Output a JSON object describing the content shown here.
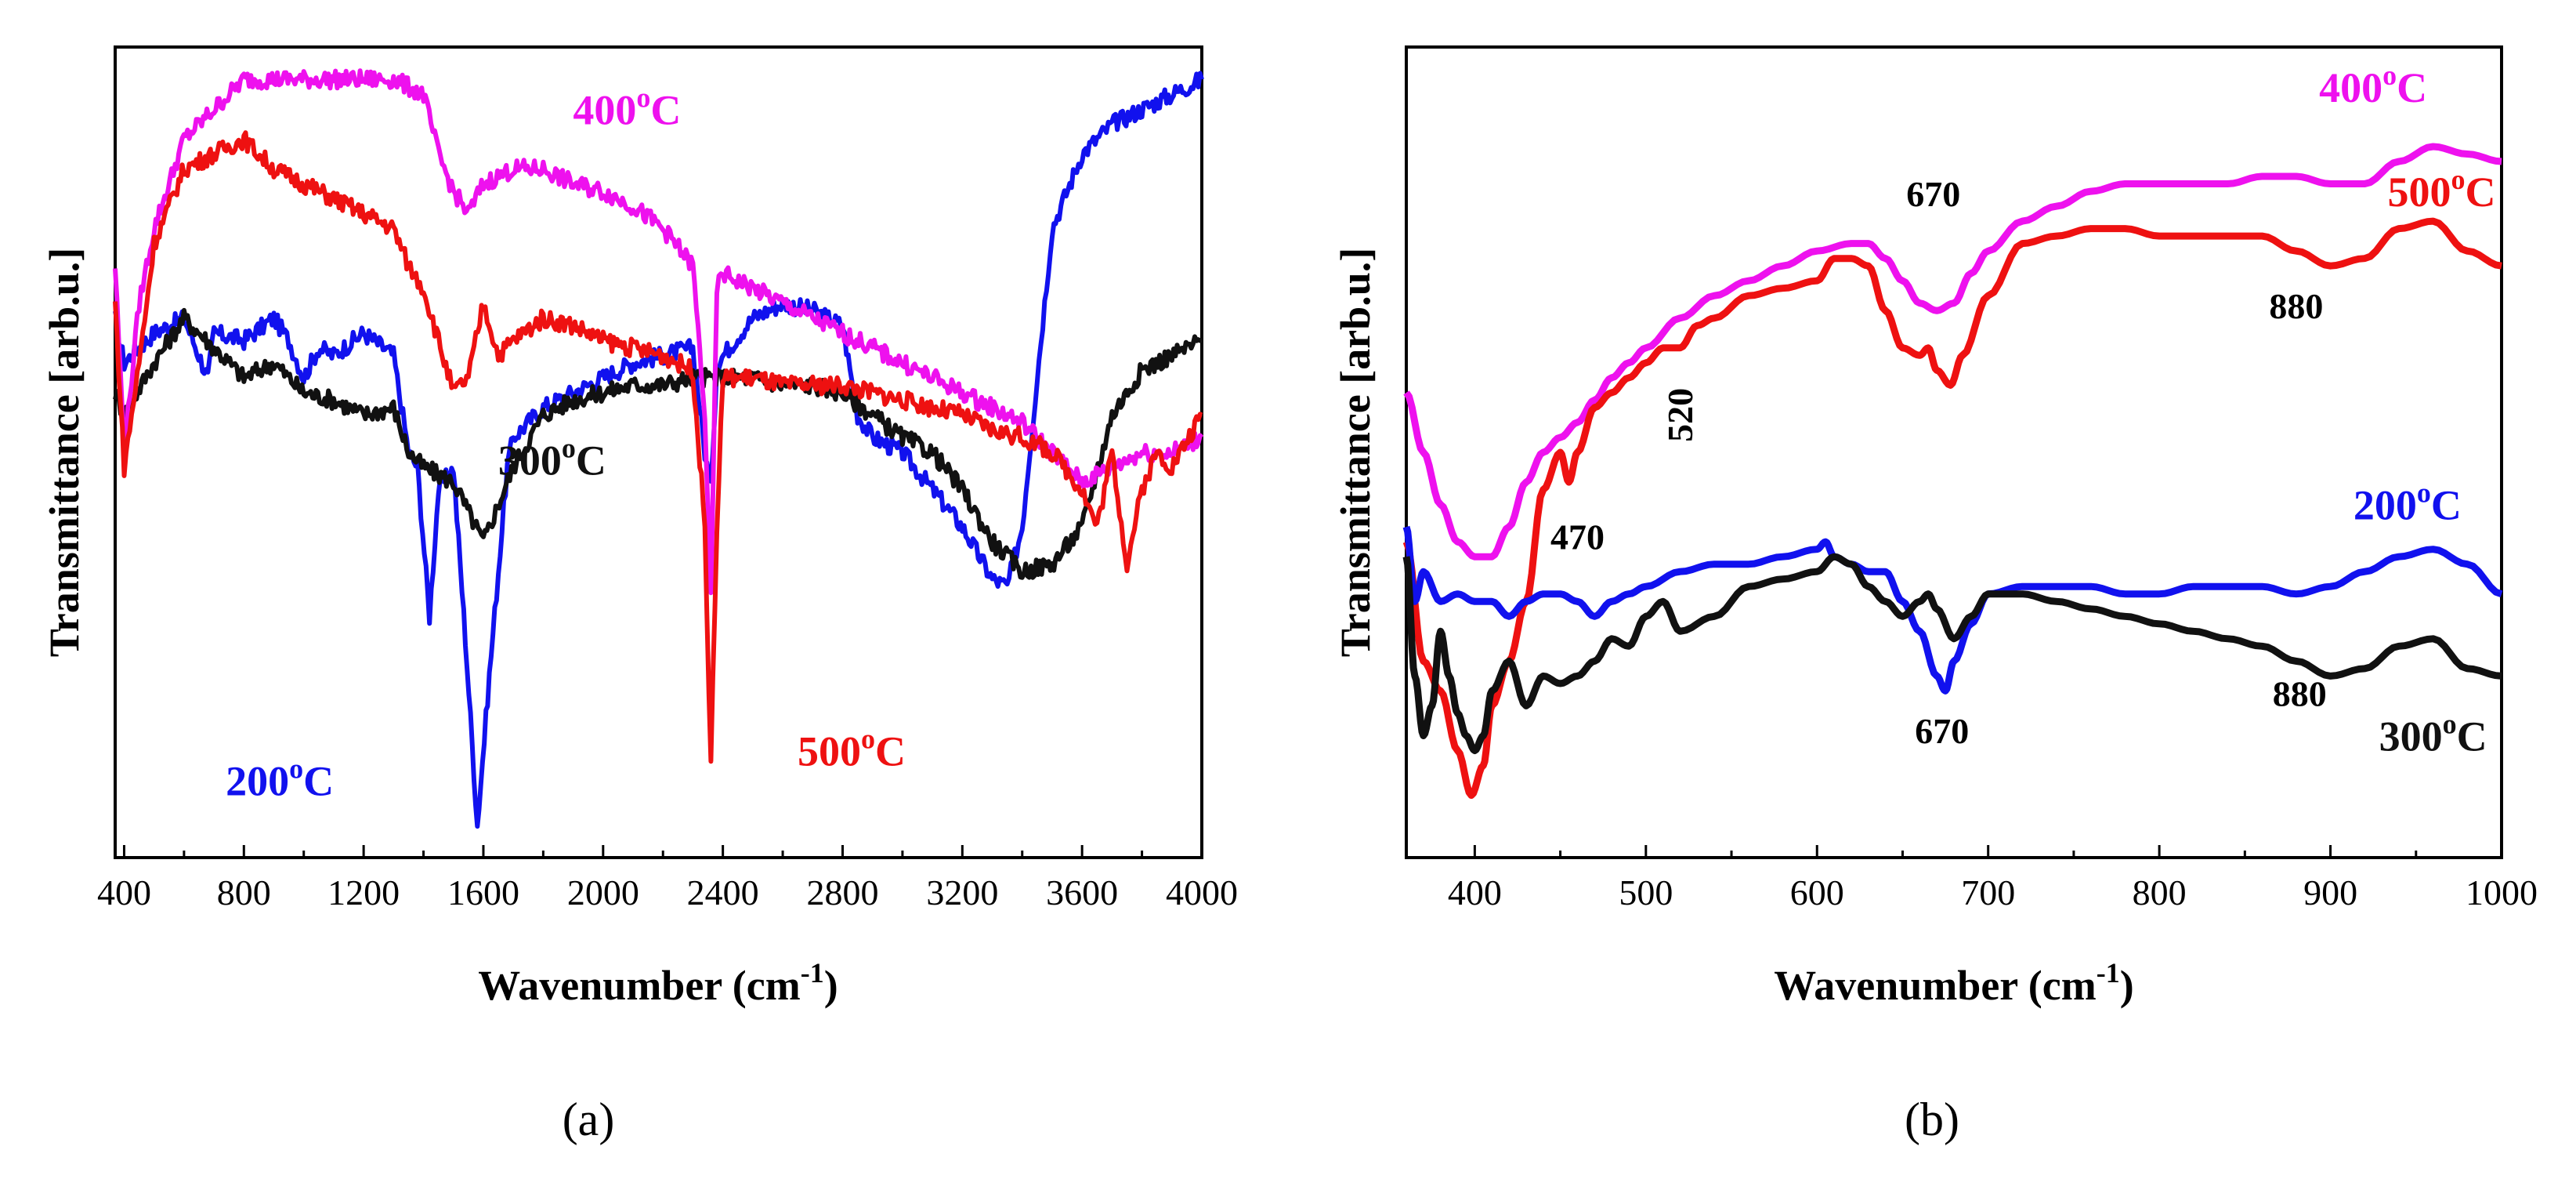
{
  "chart_data": [
    {
      "panel": "(a)",
      "type": "line",
      "title": "",
      "xlabel": "Wavenumber (cm",
      "xlabel_sup": "-1",
      "xlabel_suffix": ")",
      "ylabel": "Transmittance [arb.u.]",
      "xlim": [
        370,
        4000
      ],
      "ylim": [
        0,
        100
      ],
      "xticks": [
        400,
        800,
        1200,
        1600,
        2000,
        2400,
        2800,
        3200,
        3600,
        4000
      ],
      "series": [
        {
          "name": "200",
          "unit": "C",
          "color": "#1111ee",
          "x": [
            370,
            400,
            500,
            600,
            680,
            700,
            800,
            900,
            950,
            1000,
            1050,
            1100,
            1200,
            1300,
            1350,
            1380,
            1420,
            1450,
            1500,
            1540,
            1580,
            1620,
            1680,
            1700,
            1800,
            1900,
            2000,
            2100,
            2200,
            2300,
            2340,
            2360,
            2380,
            2420,
            2500,
            2600,
            2700,
            2800,
            2850,
            2900,
            3000,
            3100,
            3200,
            3300,
            3350,
            3400,
            3450,
            3500,
            3600,
            3650,
            3700,
            3800,
            3900,
            4000
          ],
          "y": [
            68,
            62,
            66,
            68,
            60,
            66,
            65,
            68,
            65,
            60,
            64,
            63,
            66,
            63,
            50,
            48,
            28,
            45,
            48,
            25,
            0,
            20,
            48,
            52,
            56,
            58,
            60,
            62,
            63,
            64,
            50,
            45,
            62,
            64,
            68,
            70,
            69,
            67,
            55,
            52,
            50,
            45,
            40,
            33,
            32,
            40,
            60,
            80,
            90,
            92,
            94,
            96,
            98,
            100
          ]
        },
        {
          "name": "300",
          "unit": "C",
          "color": "#111111",
          "x": [
            370,
            400,
            500,
            600,
            700,
            800,
            900,
            1000,
            1100,
            1200,
            1300,
            1350,
            1400,
            1500,
            1600,
            1700,
            1800,
            1900,
            2000,
            2100,
            2200,
            2300,
            2400,
            2500,
            2600,
            2700,
            2800,
            2900,
            3000,
            3100,
            3200,
            3300,
            3400,
            3500,
            3600,
            3700,
            3800,
            3900,
            4000
          ],
          "y": [
            58,
            55,
            62,
            68,
            64,
            60,
            62,
            58,
            57,
            55,
            56,
            50,
            48,
            46,
            38,
            48,
            55,
            57,
            58,
            59,
            59,
            60,
            60,
            60,
            59,
            59,
            58,
            55,
            52,
            50,
            45,
            38,
            34,
            35,
            40,
            55,
            61,
            63,
            65
          ]
        },
        {
          "name": "400",
          "unit": "C",
          "color": "#ee11ee",
          "x": [
            370,
            400,
            450,
            500,
            600,
            700,
            800,
            900,
            1000,
            1100,
            1200,
            1300,
            1400,
            1450,
            1500,
            1550,
            1600,
            1700,
            1800,
            1900,
            2000,
            2100,
            2200,
            2300,
            2340,
            2360,
            2380,
            2400,
            2500,
            2600,
            2700,
            2800,
            2900,
            3000,
            3100,
            3200,
            3300,
            3400,
            3500,
            3600,
            3700,
            3800,
            3900,
            4000
          ],
          "y": [
            75,
            50,
            70,
            80,
            92,
            96,
            100,
            100,
            100,
            100,
            100,
            100,
            98,
            90,
            85,
            82,
            86,
            88,
            88,
            86,
            85,
            83,
            80,
            75,
            55,
            30,
            72,
            74,
            72,
            70,
            68,
            66,
            64,
            62,
            60,
            58,
            56,
            54,
            50,
            46,
            48,
            50,
            50,
            52
          ]
        },
        {
          "name": "500",
          "unit": "C",
          "color": "#ee1111",
          "x": [
            370,
            400,
            450,
            500,
            600,
            700,
            800,
            900,
            1000,
            1100,
            1200,
            1300,
            1350,
            1400,
            1450,
            1500,
            1550,
            1600,
            1650,
            1700,
            1800,
            1900,
            2000,
            2100,
            2200,
            2300,
            2340,
            2360,
            2380,
            2400,
            2500,
            2600,
            2700,
            2800,
            2900,
            3000,
            3100,
            3200,
            3300,
            3400,
            3500,
            3600,
            3650,
            3700,
            3750,
            3800,
            3850,
            3900,
            4000
          ],
          "y": [
            70,
            48,
            62,
            78,
            88,
            90,
            92,
            88,
            86,
            84,
            82,
            80,
            75,
            72,
            65,
            58,
            60,
            70,
            63,
            65,
            68,
            67,
            65,
            64,
            63,
            61,
            40,
            8,
            40,
            60,
            60,
            59,
            59,
            59,
            58,
            57,
            56,
            55,
            53,
            52,
            50,
            45,
            40,
            50,
            35,
            45,
            50,
            48,
            55
          ]
        }
      ],
      "labels": [
        {
          "text": "400",
          "unit": "C",
          "color": "#ee11ee",
          "x": 2080,
          "y": 94
        },
        {
          "text": "300",
          "unit": "C",
          "color": "#111111",
          "x": 1830,
          "y": 47
        },
        {
          "text": "200",
          "unit": "C",
          "color": "#1111ee",
          "x": 920,
          "y": 4
        },
        {
          "text": "500",
          "unit": "C",
          "color": "#ee1111",
          "x": 2830,
          "y": 8
        }
      ]
    },
    {
      "panel": "(b)",
      "type": "line",
      "title": "",
      "xlabel": "Wavenumber (cm",
      "xlabel_sup": "-1",
      "xlabel_suffix": ")",
      "ylabel": "Transmittance [arb.u.]",
      "xlim": [
        360,
        1000
      ],
      "ylim": [
        0,
        100
      ],
      "xticks": [
        400,
        500,
        600,
        700,
        800,
        900,
        1000
      ],
      "series": [
        {
          "name": "400",
          "unit": "C",
          "color": "#ee11ee",
          "x": [
            360,
            370,
            380,
            390,
            400,
            410,
            420,
            430,
            440,
            450,
            460,
            470,
            480,
            490,
            500,
            520,
            540,
            560,
            580,
            600,
            620,
            630,
            640,
            650,
            660,
            670,
            680,
            690,
            700,
            720,
            740,
            760,
            780,
            800,
            820,
            840,
            860,
            880,
            900,
            920,
            940,
            960,
            980,
            1000
          ],
          "y": [
            58,
            50,
            43,
            38,
            36,
            36,
            40,
            46,
            50,
            52,
            54,
            57,
            60,
            62,
            64,
            68,
            71,
            73,
            75,
            77,
            78,
            78,
            76,
            73,
            70,
            69,
            70,
            74,
            77,
            81,
            83,
            85,
            86,
            86,
            86,
            86,
            87,
            87,
            86,
            86,
            89,
            91,
            90,
            89
          ]
        },
        {
          "name": "500",
          "unit": "C",
          "color": "#ee1111",
          "x": [
            360,
            370,
            380,
            390,
            398,
            405,
            410,
            420,
            430,
            440,
            450,
            455,
            460,
            470,
            480,
            490,
            500,
            510,
            520,
            530,
            540,
            560,
            580,
            600,
            610,
            620,
            630,
            640,
            650,
            660,
            665,
            670,
            678,
            685,
            700,
            720,
            740,
            760,
            780,
            800,
            820,
            840,
            860,
            880,
            900,
            920,
            940,
            960,
            980,
            1000
          ],
          "y": [
            38,
            22,
            18,
            10,
            4,
            8,
            16,
            22,
            30,
            45,
            50,
            46,
            50,
            56,
            58,
            60,
            62,
            64,
            64,
            67,
            68,
            71,
            72,
            73,
            76,
            76,
            75,
            69,
            64,
            63,
            64,
            61,
            59,
            63,
            71,
            78,
            79,
            80,
            80,
            79,
            79,
            79,
            79,
            77,
            75,
            76,
            80,
            81,
            77,
            75
          ]
        },
        {
          "name": "200",
          "unit": "C",
          "color": "#1111ee",
          "x": [
            360,
            365,
            370,
            380,
            390,
            400,
            410,
            420,
            430,
            440,
            450,
            460,
            470,
            480,
            490,
            500,
            520,
            540,
            560,
            580,
            600,
            605,
            610,
            620,
            630,
            640,
            650,
            660,
            670,
            675,
            680,
            690,
            700,
            720,
            740,
            760,
            780,
            800,
            820,
            840,
            860,
            880,
            900,
            920,
            940,
            960,
            980,
            1000
          ],
          "y": [
            40,
            30,
            34,
            30,
            31,
            30,
            30,
            28,
            30,
            31,
            31,
            30,
            28,
            30,
            31,
            32,
            34,
            35,
            35,
            36,
            37,
            38,
            36,
            35,
            34,
            34,
            30,
            26,
            20,
            18,
            22,
            27,
            31,
            32,
            32,
            32,
            31,
            31,
            32,
            32,
            32,
            31,
            32,
            34,
            36,
            37,
            35,
            31
          ]
        },
        {
          "name": "300",
          "unit": "C",
          "color": "#111111",
          "x": [
            360,
            365,
            370,
            375,
            380,
            385,
            390,
            395,
            400,
            405,
            410,
            420,
            430,
            440,
            450,
            460,
            470,
            480,
            490,
            500,
            510,
            520,
            540,
            560,
            580,
            600,
            610,
            620,
            630,
            640,
            650,
            660,
            665,
            670,
            680,
            690,
            700,
            720,
            740,
            760,
            780,
            800,
            820,
            840,
            860,
            880,
            900,
            920,
            940,
            960,
            980,
            1000
          ],
          "y": [
            36,
            20,
            12,
            16,
            26,
            20,
            15,
            12,
            10,
            12,
            18,
            22,
            16,
            20,
            19,
            20,
            22,
            25,
            24,
            28,
            30,
            26,
            28,
            32,
            33,
            34,
            36,
            35,
            32,
            30,
            28,
            30,
            31,
            29,
            25,
            28,
            31,
            31,
            30,
            29,
            28,
            27,
            26,
            25,
            24,
            22,
            20,
            21,
            24,
            25,
            21,
            20
          ]
        }
      ],
      "labels": [
        {
          "text": "400",
          "unit": "C",
          "color": "#ee11ee",
          "x": 925,
          "y": 97
        },
        {
          "text": "500",
          "unit": "C",
          "color": "#ee1111",
          "x": 965,
          "y": 83
        },
        {
          "text": "200",
          "unit": "C",
          "color": "#1111ee",
          "x": 945,
          "y": 41
        },
        {
          "text": "300",
          "unit": "C",
          "color": "#111111",
          "x": 960,
          "y": 10
        }
      ],
      "annotations": [
        {
          "text": "670",
          "x": 668,
          "y": 83
        },
        {
          "text": "880",
          "x": 880,
          "y": 68
        },
        {
          "text": "520",
          "x": 527,
          "y": 55,
          "rotated": true
        },
        {
          "text": "470",
          "x": 460,
          "y": 37
        },
        {
          "text": "670",
          "x": 673,
          "y": 11
        },
        {
          "text": "880",
          "x": 882,
          "y": 16
        }
      ]
    }
  ],
  "captions": {
    "a": "(a)",
    "b": "(b)"
  },
  "degree_o": "o"
}
